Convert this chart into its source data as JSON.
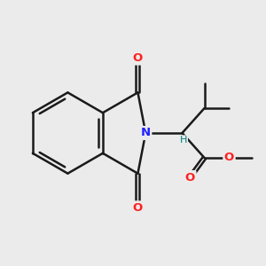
{
  "background_color": "#ebebeb",
  "bond_color": "#1a1a1a",
  "N_color": "#2020ff",
  "O_color": "#ff2020",
  "H_color": "#008080",
  "line_width": 1.8,
  "figsize": [
    3.0,
    3.0
  ],
  "dpi": 100,
  "xlim": [
    0,
    10
  ],
  "ylim": [
    0,
    10
  ]
}
